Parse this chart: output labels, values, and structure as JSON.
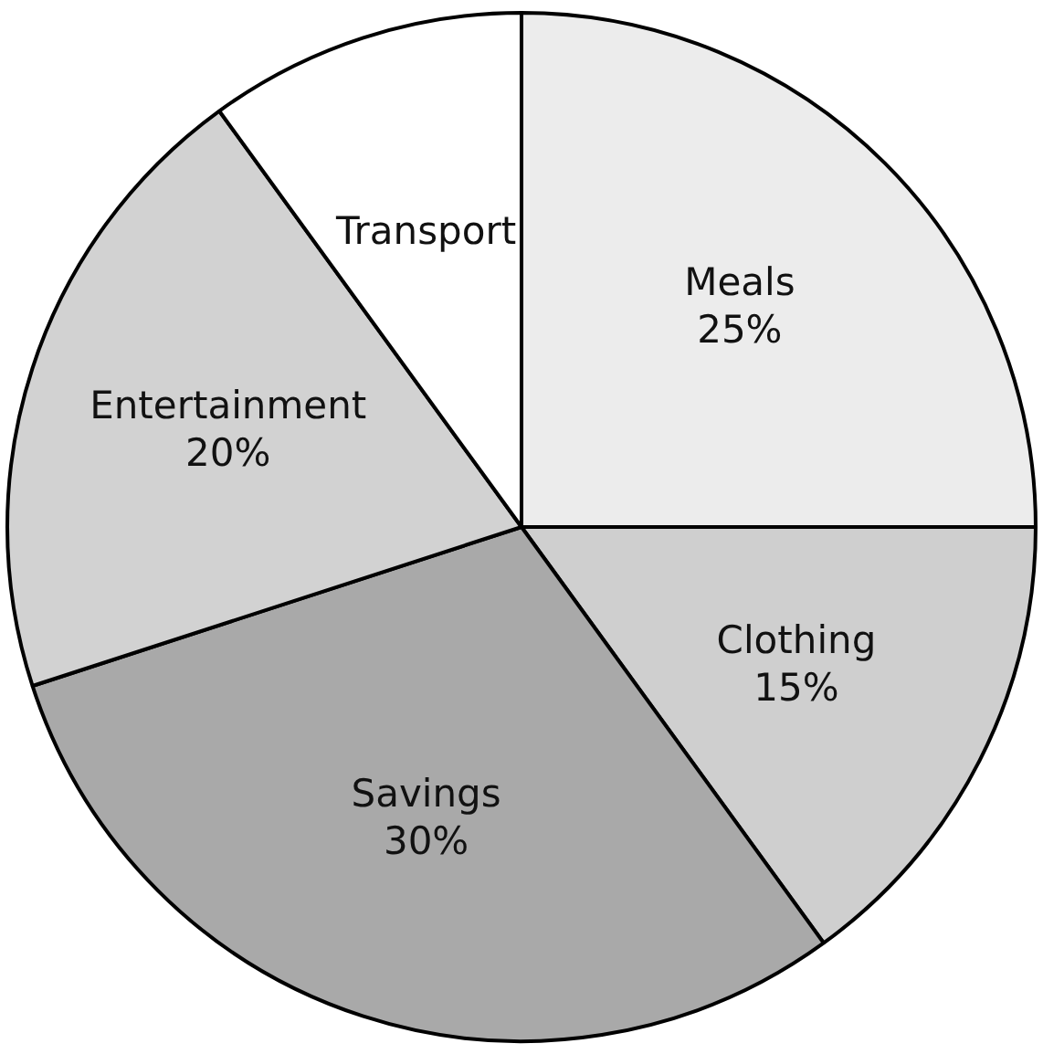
{
  "chart_data": {
    "type": "pie",
    "categories": [
      "Meals",
      "Clothing",
      "Savings",
      "Entertainment",
      "Transport"
    ],
    "values": [
      25,
      15,
      30,
      20,
      10
    ],
    "value_labels": [
      "25%",
      "15%",
      "30%",
      "20%",
      null
    ],
    "colors": [
      "#ececec",
      "#cfcfcf",
      "#a9a9a9",
      "#d2d2d2",
      "#ffffff"
    ],
    "legend": false
  }
}
